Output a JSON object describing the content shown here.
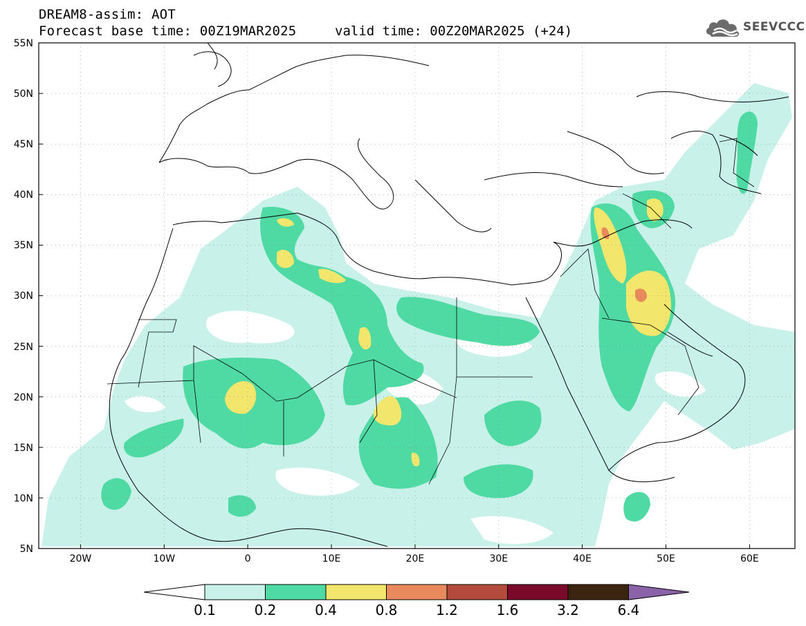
{
  "header": {
    "title": "DREAM8-assim: AOT",
    "forecast_base": "Forecast base time: 00Z19MAR2025",
    "valid_time": "valid time: 00Z20MAR2025 (+24)"
  },
  "logo": {
    "icon": "cloud-icon",
    "text": "SEEVCCC"
  },
  "axes": {
    "lat_labels": [
      "55N",
      "50N",
      "45N",
      "40N",
      "35N",
      "30N",
      "25N",
      "20N",
      "15N",
      "10N",
      "5N"
    ],
    "lon_labels": [
      "20W",
      "10W",
      "0",
      "10E",
      "20E",
      "30E",
      "40E",
      "50E",
      "60E"
    ]
  },
  "colorbar": {
    "labels": [
      "0.1",
      "0.2",
      "0.4",
      "0.8",
      "1.2",
      "1.6",
      "3.2",
      "6.4"
    ],
    "colors": [
      "#ffffff",
      "#c8f2e9",
      "#4fd9a3",
      "#f2e66c",
      "#e88a5c",
      "#b24b3c",
      "#7a0a2a",
      "#3b2410",
      "#8a62a8"
    ]
  }
}
